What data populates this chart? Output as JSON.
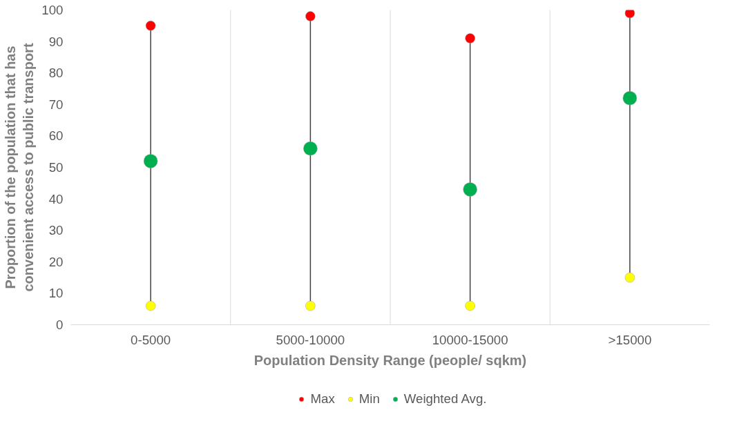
{
  "chart_data": {
    "type": "scatter",
    "xlabel": "Population Density Range (people/ sqkm)",
    "ylabel": "Proportion of the population that has convenient access to public transport",
    "categories": [
      "0-5000",
      "5000-10000",
      "10000-15000",
      ">15000"
    ],
    "series": [
      {
        "name": "Max",
        "color": "#ff0000",
        "values": [
          95,
          98,
          91,
          99
        ],
        "marker": "circle"
      },
      {
        "name": "Min",
        "color": "#ffff00",
        "values": [
          6,
          6,
          6,
          15
        ],
        "marker": "circle"
      },
      {
        "name": "Weighted Avg.",
        "color": "#00b050",
        "values": [
          52,
          56,
          43,
          72
        ],
        "marker": "circle"
      }
    ],
    "ylim": [
      0,
      100
    ],
    "yticks": [
      0,
      10,
      20,
      30,
      40,
      50,
      60,
      70,
      80,
      90,
      100
    ],
    "grid": "x",
    "legend": "bottom"
  }
}
